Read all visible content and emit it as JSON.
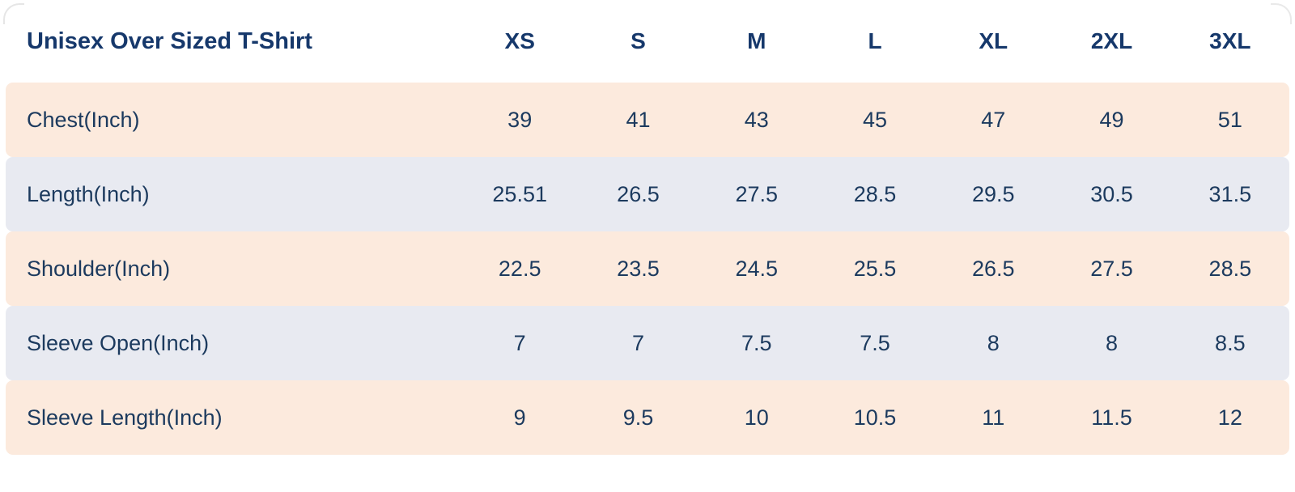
{
  "colors": {
    "row_peach": "#fceadd",
    "row_blue": "#e8eaf1",
    "text_navy": "#1c3a5e",
    "title_navy": "#16386b",
    "background": "#ffffff"
  },
  "chart_data": {
    "type": "table",
    "title": "Unisex Over Sized T-Shirt",
    "columns": [
      "XS",
      "S",
      "M",
      "L",
      "XL",
      "2XL",
      "3XL"
    ],
    "rows": [
      {
        "label": "Chest(Inch)",
        "values": [
          39,
          41,
          43,
          45,
          47,
          49,
          51
        ]
      },
      {
        "label": "Length(Inch)",
        "values": [
          25.51,
          26.5,
          27.5,
          28.5,
          29.5,
          30.5,
          31.5
        ]
      },
      {
        "label": "Shoulder(Inch)",
        "values": [
          22.5,
          23.5,
          24.5,
          25.5,
          26.5,
          27.5,
          28.5
        ]
      },
      {
        "label": "Sleeve Open(Inch)",
        "values": [
          7,
          7,
          7.5,
          7.5,
          8,
          8,
          8.5
        ]
      },
      {
        "label": "Sleeve Length(Inch)",
        "values": [
          9,
          9.5,
          10,
          10.5,
          11,
          11.5,
          12
        ]
      }
    ],
    "row_style_order": [
      "peach",
      "blue",
      "peach",
      "blue",
      "peach"
    ],
    "layout": {
      "grid": false,
      "legend": false,
      "header_background": "#ffffff"
    }
  }
}
